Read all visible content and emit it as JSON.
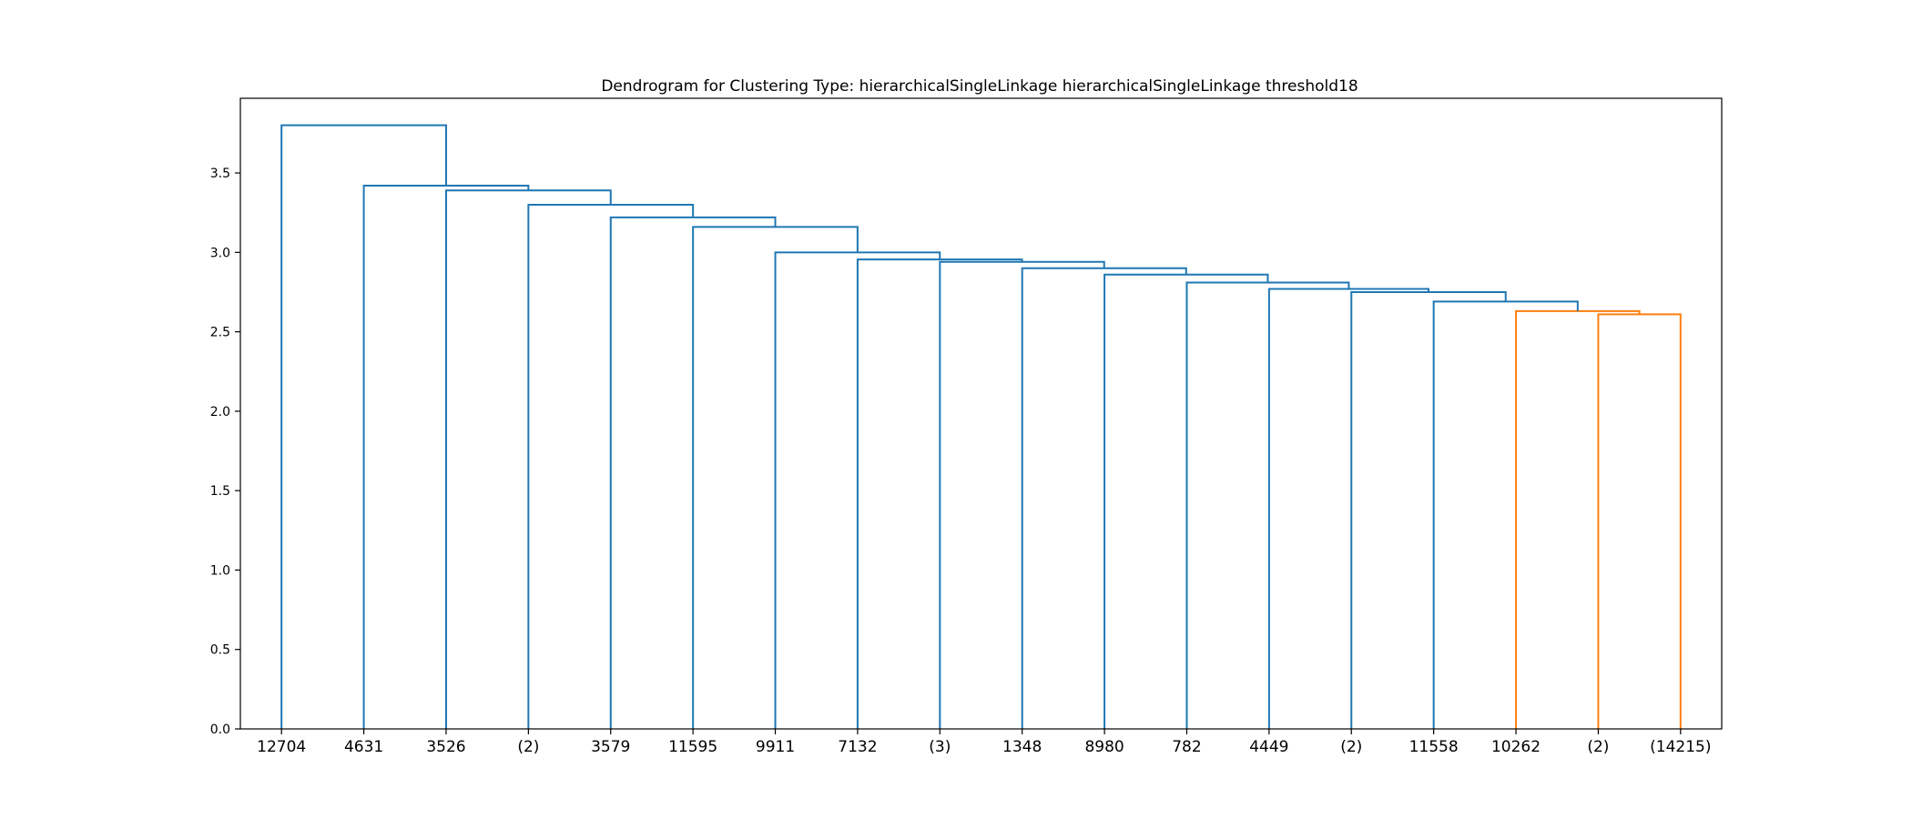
{
  "chart_data": {
    "type": "dendrogram",
    "title": "Dendrogram for Clustering Type: hierarchicalSingleLinkage hierarchicalSingleLinkage threshold18",
    "xlabel": "",
    "ylabel": "",
    "ylim": [
      0,
      3.97
    ],
    "y_ticks": [
      "0.0",
      "0.5",
      "1.0",
      "1.5",
      "2.0",
      "2.5",
      "3.0",
      "3.5"
    ],
    "y_tick_values": [
      0.0,
      0.5,
      1.0,
      1.5,
      2.0,
      2.5,
      3.0,
      3.5
    ],
    "leaves": [
      "12704",
      "4631",
      "3526",
      "(2)",
      "3579",
      "11595",
      "9911",
      "7132",
      "(3)",
      "1348",
      "8980",
      "782",
      "4449",
      "(2)",
      "11558",
      "10262",
      "(2)",
      "(14215)"
    ],
    "grid": false,
    "colors": {
      "above_threshold": "#1f77b4",
      "cluster": "#ff7f0e"
    },
    "merges": [
      {
        "children": [
          16,
          17
        ],
        "height": 2.61,
        "color": "#ff7f0e"
      },
      {
        "children": [
          15,
          "m0"
        ],
        "height": 2.63,
        "color": "#ff7f0e"
      },
      {
        "children": [
          14,
          "m1"
        ],
        "height": 2.69,
        "color": "#1f77b4"
      },
      {
        "children": [
          13,
          "m2"
        ],
        "height": 2.75,
        "color": "#1f77b4"
      },
      {
        "children": [
          12,
          "m3"
        ],
        "height": 2.77,
        "color": "#1f77b4"
      },
      {
        "children": [
          11,
          "m4"
        ],
        "height": 2.81,
        "color": "#1f77b4"
      },
      {
        "children": [
          10,
          "m5"
        ],
        "height": 2.86,
        "color": "#1f77b4"
      },
      {
        "children": [
          9,
          "m6"
        ],
        "height": 2.9,
        "color": "#1f77b4"
      },
      {
        "children": [
          8,
          "m7"
        ],
        "height": 2.94,
        "color": "#1f77b4"
      },
      {
        "children": [
          7,
          "m8"
        ],
        "height": 2.955,
        "color": "#1f77b4"
      },
      {
        "children": [
          6,
          "m9"
        ],
        "height": 3.0,
        "color": "#1f77b4"
      },
      {
        "children": [
          5,
          "m10"
        ],
        "height": 3.16,
        "color": "#1f77b4"
      },
      {
        "children": [
          4,
          "m11"
        ],
        "height": 3.22,
        "color": "#1f77b4"
      },
      {
        "children": [
          3,
          "m12"
        ],
        "height": 3.3,
        "color": "#1f77b4"
      },
      {
        "children": [
          2,
          "m13"
        ],
        "height": 3.39,
        "color": "#1f77b4"
      },
      {
        "children": [
          1,
          "m14"
        ],
        "height": 3.42,
        "color": "#1f77b4"
      },
      {
        "children": [
          0,
          "m15"
        ],
        "height": 3.8,
        "color": "#1f77b4"
      }
    ]
  }
}
